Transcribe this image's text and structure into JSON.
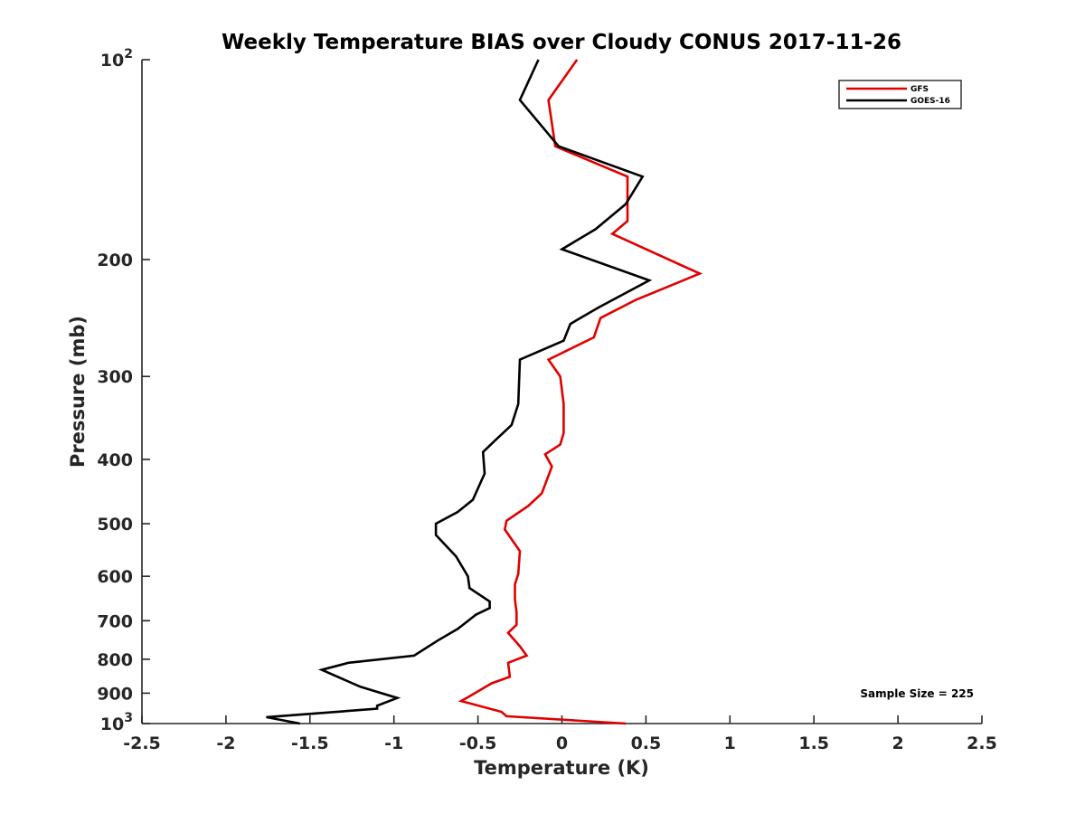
{
  "chart_data": {
    "type": "line",
    "title": "Weekly Temperature BIAS over Cloudy CONUS 2017-11-26",
    "xlabel": "Temperature (K)",
    "ylabel": "Pressure (mb)",
    "xlim": [
      -2.5,
      2.5
    ],
    "ylim": [
      100,
      1000
    ],
    "y_scale": "log",
    "y_reversed": true,
    "grid": false,
    "legend_position": "top-right",
    "x_ticks": [
      -2.5,
      -2,
      -1.5,
      -1,
      -0.5,
      0,
      0.5,
      1,
      1.5,
      2,
      2.5
    ],
    "x_tick_labels": [
      "-2.5",
      "-2",
      "-1.5",
      "-1",
      "-0.5",
      "0",
      "0.5",
      "1",
      "1.5",
      "2",
      "2.5"
    ],
    "y_ticks": [
      100,
      200,
      300,
      400,
      500,
      600,
      700,
      800,
      900,
      1000
    ],
    "y_tick_labels": [
      {
        "base": "10",
        "exp": "2"
      },
      {
        "base": "200",
        "exp": ""
      },
      {
        "base": "300",
        "exp": ""
      },
      {
        "base": "400",
        "exp": ""
      },
      {
        "base": "500",
        "exp": ""
      },
      {
        "base": "600",
        "exp": ""
      },
      {
        "base": "700",
        "exp": ""
      },
      {
        "base": "800",
        "exp": ""
      },
      {
        "base": "900",
        "exp": ""
      },
      {
        "base": "10",
        "exp": "3"
      }
    ],
    "annotation": "Sample Size = 225",
    "series": [
      {
        "name": "GFS",
        "color": "#e00000",
        "points": [
          [
            0.09,
            100
          ],
          [
            -0.08,
            115
          ],
          [
            -0.04,
            135
          ],
          [
            0.39,
            150
          ],
          [
            0.39,
            175
          ],
          [
            0.3,
            183
          ],
          [
            0.82,
            210
          ],
          [
            0.44,
            230
          ],
          [
            0.23,
            245
          ],
          [
            0.19,
            262
          ],
          [
            -0.08,
            283
          ],
          [
            -0.01,
            300
          ],
          [
            0.01,
            330
          ],
          [
            0.01,
            365
          ],
          [
            -0.01,
            380
          ],
          [
            -0.1,
            393
          ],
          [
            -0.06,
            410
          ],
          [
            -0.12,
            450
          ],
          [
            -0.2,
            470
          ],
          [
            -0.33,
            495
          ],
          [
            -0.34,
            510
          ],
          [
            -0.25,
            550
          ],
          [
            -0.26,
            595
          ],
          [
            -0.28,
            617
          ],
          [
            -0.28,
            650
          ],
          [
            -0.27,
            680
          ],
          [
            -0.27,
            710
          ],
          [
            -0.32,
            730
          ],
          [
            -0.25,
            765
          ],
          [
            -0.21,
            790
          ],
          [
            -0.32,
            810
          ],
          [
            -0.31,
            850
          ],
          [
            -0.42,
            870
          ],
          [
            -0.55,
            910
          ],
          [
            -0.6,
            925
          ],
          [
            -0.36,
            960
          ],
          [
            -0.33,
            975
          ],
          [
            0.38,
            1000
          ]
        ]
      },
      {
        "name": "GOES-16",
        "color": "#000000",
        "points": [
          [
            -0.14,
            100
          ],
          [
            -0.25,
            115
          ],
          [
            -0.02,
            135
          ],
          [
            0.48,
            150
          ],
          [
            0.38,
            165
          ],
          [
            0.2,
            180
          ],
          [
            0.0,
            193
          ],
          [
            0.52,
            215
          ],
          [
            0.22,
            236
          ],
          [
            0.05,
            250
          ],
          [
            0.01,
            265
          ],
          [
            -0.25,
            283
          ],
          [
            -0.26,
            330
          ],
          [
            -0.3,
            355
          ],
          [
            -0.4,
            375
          ],
          [
            -0.47,
            390
          ],
          [
            -0.46,
            420
          ],
          [
            -0.53,
            460
          ],
          [
            -0.62,
            480
          ],
          [
            -0.75,
            500
          ],
          [
            -0.75,
            520
          ],
          [
            -0.63,
            560
          ],
          [
            -0.56,
            600
          ],
          [
            -0.55,
            625
          ],
          [
            -0.43,
            655
          ],
          [
            -0.43,
            670
          ],
          [
            -0.51,
            685
          ],
          [
            -0.62,
            720
          ],
          [
            -0.74,
            750
          ],
          [
            -0.88,
            790
          ],
          [
            -1.27,
            810
          ],
          [
            -1.43,
            830
          ],
          [
            -1.2,
            880
          ],
          [
            -0.98,
            915
          ],
          [
            -1.1,
            940
          ],
          [
            -1.1,
            950
          ],
          [
            -1.76,
            978
          ],
          [
            -1.56,
            1000
          ]
        ]
      }
    ]
  }
}
